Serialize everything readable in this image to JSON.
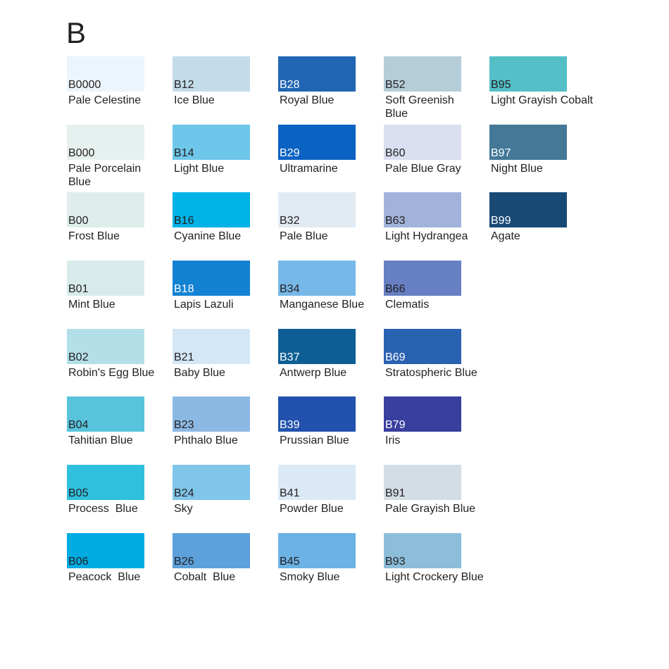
{
  "title": "B",
  "palette_family": "B (Blue)",
  "colors": {
    "background": "#ffffff",
    "text": "#231f20",
    "code_on_dark": "#ffffff"
  },
  "swatches": [
    {
      "code": "B0000",
      "name": "Pale Celestine",
      "hex": "#edf5fc",
      "code_text": "dark",
      "col": 1,
      "row": 1
    },
    {
      "code": "B12",
      "name": "Ice Blue",
      "hex": "#c3dcea",
      "code_text": "dark",
      "col": 2,
      "row": 1
    },
    {
      "code": "B28",
      "name": "Royal Blue",
      "hex": "#2066b4",
      "code_text": "light",
      "col": 3,
      "row": 1
    },
    {
      "code": "B52",
      "name": "Soft Greenish\nBlue",
      "hex": "#b4cdd9",
      "code_text": "dark",
      "col": 4,
      "row": 1
    },
    {
      "code": "B95",
      "name": "Light Grayish Cobalt",
      "hex": "#54bfc7",
      "code_text": "dark",
      "col": 5,
      "row": 1
    },
    {
      "code": "B000",
      "name": "Pale Porcelain\nBlue",
      "hex": "#e6f1ef",
      "code_text": "dark",
      "col": 1,
      "row": 2
    },
    {
      "code": "B14",
      "name": "Light Blue",
      "hex": "#6ec7ea",
      "code_text": "dark",
      "col": 2,
      "row": 2
    },
    {
      "code": "B29",
      "name": "Ultramarine",
      "hex": "#0a62c3",
      "code_text": "light",
      "col": 3,
      "row": 2
    },
    {
      "code": "B60",
      "name": "Pale Blue Gray",
      "hex": "#dadff1",
      "code_text": "dark",
      "col": 4,
      "row": 2
    },
    {
      "code": "B97",
      "name": "Night Blue",
      "hex": "#437897",
      "code_text": "light",
      "col": 5,
      "row": 2
    },
    {
      "code": "B00",
      "name": "Frost Blue",
      "hex": "#dfeeec",
      "code_text": "dark",
      "col": 1,
      "row": 3
    },
    {
      "code": "B16",
      "name": "Cyanine Blue",
      "hex": "#00b2e6",
      "code_text": "dark",
      "col": 2,
      "row": 3
    },
    {
      "code": "B32",
      "name": "Pale Blue",
      "hex": "#e2ebf4",
      "code_text": "dark",
      "col": 3,
      "row": 3
    },
    {
      "code": "B63",
      "name": "Light Hydrangea",
      "hex": "#a2b3db",
      "code_text": "dark",
      "col": 4,
      "row": 3
    },
    {
      "code": "B99",
      "name": "Agate",
      "hex": "#194a76",
      "code_text": "light",
      "col": 5,
      "row": 3
    },
    {
      "code": "B01",
      "name": "Mint Blue",
      "hex": "#d7ebea",
      "code_text": "dark",
      "col": 1,
      "row": 4
    },
    {
      "code": "B18",
      "name": "Lapis Lazuli",
      "hex": "#1482d2",
      "code_text": "light",
      "col": 2,
      "row": 4
    },
    {
      "code": "B34",
      "name": "Manganese Blue",
      "hex": "#76b8e8",
      "code_text": "dark",
      "col": 3,
      "row": 4
    },
    {
      "code": "B66",
      "name": "Clematis",
      "hex": "#6680c3",
      "code_text": "dark",
      "col": 4,
      "row": 4
    },
    {
      "code": "B02",
      "name": "Robin's Egg Blue",
      "hex": "#b2dfe8",
      "code_text": "dark",
      "col": 1,
      "row": 5
    },
    {
      "code": "B21",
      "name": "Baby Blue",
      "hex": "#d3e7f6",
      "code_text": "dark",
      "col": 2,
      "row": 5
    },
    {
      "code": "B37",
      "name": "Antwerp Blue",
      "hex": "#0e5e96",
      "code_text": "light",
      "col": 3,
      "row": 5
    },
    {
      "code": "B69",
      "name": "Stratospheric Blue",
      "hex": "#2a62b2",
      "code_text": "light",
      "col": 4,
      "row": 5
    },
    {
      "code": "B04",
      "name": "Tahitian Blue",
      "hex": "#58c4dc",
      "code_text": "dark",
      "col": 1,
      "row": 6
    },
    {
      "code": "B23",
      "name": "Phthalo Blue",
      "hex": "#8cb8e4",
      "code_text": "dark",
      "col": 2,
      "row": 6
    },
    {
      "code": "B39",
      "name": "Prussian Blue",
      "hex": "#2252ad",
      "code_text": "light",
      "col": 3,
      "row": 6
    },
    {
      "code": "B79",
      "name": "Iris",
      "hex": "#393f9d",
      "code_text": "light",
      "col": 4,
      "row": 6
    },
    {
      "code": "B05",
      "name": "Process  Blue",
      "hex": "#2fc0dd",
      "code_text": "dark",
      "col": 1,
      "row": 7
    },
    {
      "code": "B24",
      "name": "Sky",
      "hex": "#80c5ea",
      "code_text": "dark",
      "col": 2,
      "row": 7
    },
    {
      "code": "B41",
      "name": "Powder Blue",
      "hex": "#dbe9f7",
      "code_text": "dark",
      "col": 3,
      "row": 7
    },
    {
      "code": "B91",
      "name": "Pale Grayish Blue",
      "hex": "#d3dde5",
      "code_text": "dark",
      "col": 4,
      "row": 7
    },
    {
      "code": "B06",
      "name": "Peacock  Blue",
      "hex": "#00abe2",
      "code_text": "dark",
      "col": 1,
      "row": 8
    },
    {
      "code": "B26",
      "name": "Cobalt  Blue",
      "hex": "#5ca1db",
      "code_text": "dark",
      "col": 2,
      "row": 8
    },
    {
      "code": "B45",
      "name": "Smoky Blue",
      "hex": "#6bb2e5",
      "code_text": "dark",
      "col": 3,
      "row": 8
    },
    {
      "code": "B93",
      "name": "Light Crockery Blue",
      "hex": "#8cbdd9",
      "code_text": "dark",
      "col": 4,
      "row": 8
    }
  ]
}
